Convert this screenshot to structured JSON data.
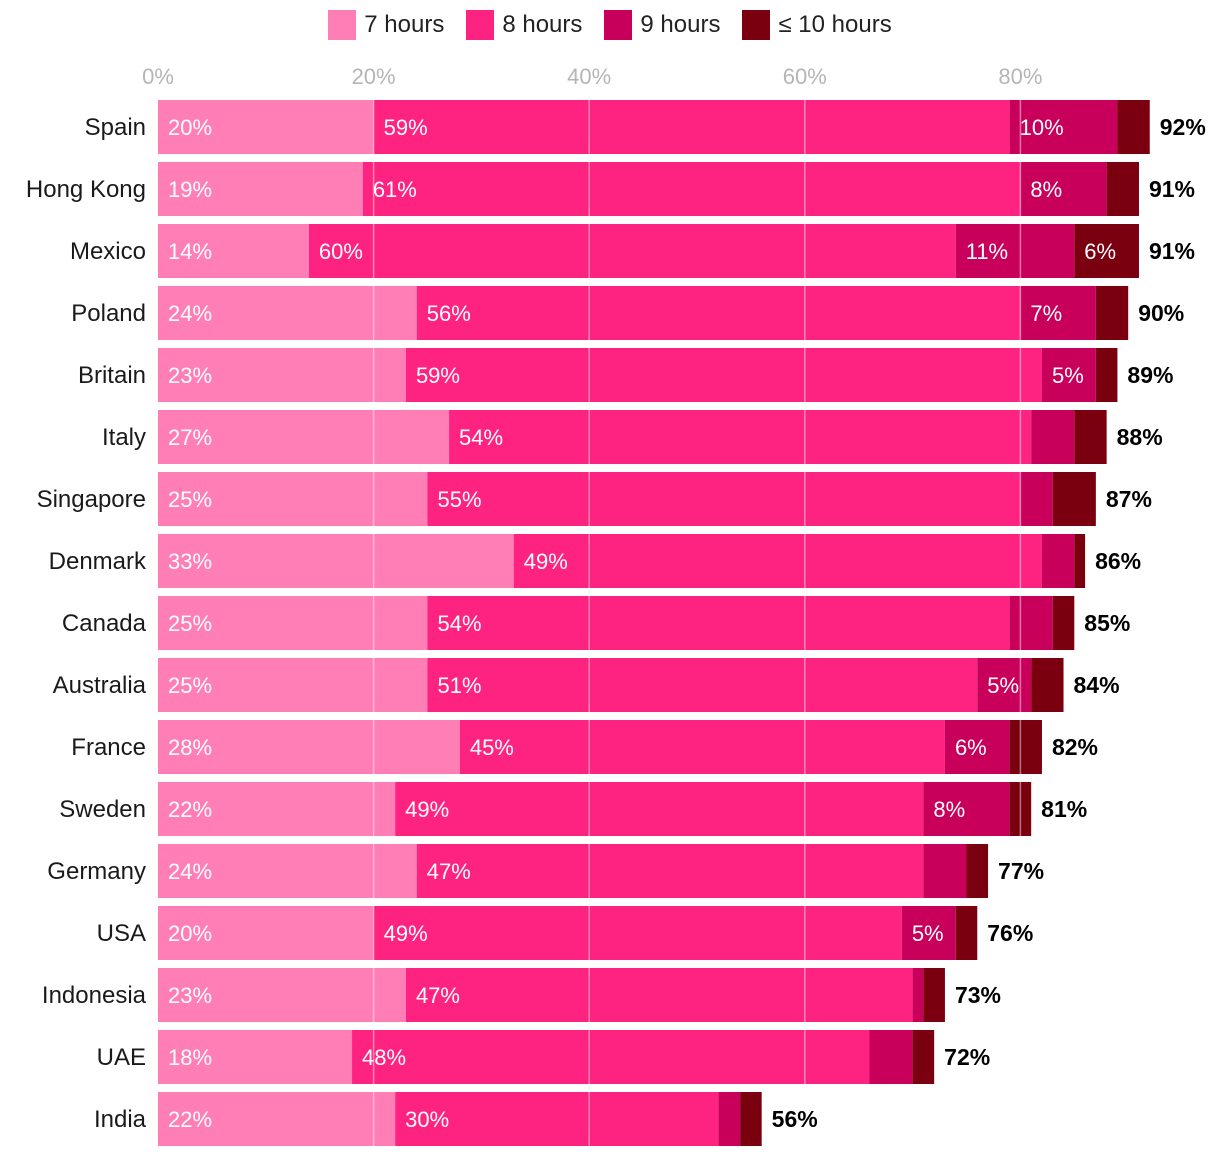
{
  "chart_data": {
    "type": "bar",
    "orientation": "horizontal",
    "stacked": true,
    "xlim": [
      0,
      100
    ],
    "x_ticks": [
      "0%",
      "20%",
      "40%",
      "60%",
      "80%"
    ],
    "x_tick_values": [
      0,
      20,
      40,
      60,
      80
    ],
    "grid": true,
    "legend_position": "top-center",
    "series": [
      {
        "name": "7 hours",
        "color": "#FF7EB6"
      },
      {
        "name": "8 hours",
        "color": "#FF2381"
      },
      {
        "name": "9 hours",
        "color": "#C9005B"
      },
      {
        "name": "≤ 10 hours",
        "color": "#7A0010"
      }
    ],
    "rows": [
      {
        "country": "Spain",
        "values": [
          20,
          59,
          10,
          3
        ],
        "labels": [
          "20%",
          "59%",
          "10%",
          ""
        ],
        "total": "92%"
      },
      {
        "country": "Hong Kong",
        "values": [
          19,
          61,
          8,
          3
        ],
        "labels": [
          "19%",
          "61%",
          "8%",
          ""
        ],
        "total": "91%"
      },
      {
        "country": "Mexico",
        "values": [
          14,
          60,
          11,
          6
        ],
        "labels": [
          "14%",
          "60%",
          "11%",
          "6%"
        ],
        "total": "91%"
      },
      {
        "country": "Poland",
        "values": [
          24,
          56,
          7,
          3
        ],
        "labels": [
          "24%",
          "56%",
          "7%",
          ""
        ],
        "total": "90%"
      },
      {
        "country": "Britain",
        "values": [
          23,
          59,
          5,
          2
        ],
        "labels": [
          "23%",
          "59%",
          "5%",
          ""
        ],
        "total": "89%"
      },
      {
        "country": "Italy",
        "values": [
          27,
          54,
          4,
          3
        ],
        "labels": [
          "27%",
          "54%",
          "",
          ""
        ],
        "total": "88%"
      },
      {
        "country": "Singapore",
        "values": [
          25,
          55,
          3,
          4
        ],
        "labels": [
          "25%",
          "55%",
          "",
          ""
        ],
        "total": "87%"
      },
      {
        "country": "Denmark",
        "values": [
          33,
          49,
          3,
          1
        ],
        "labels": [
          "33%",
          "49%",
          "",
          ""
        ],
        "total": "86%"
      },
      {
        "country": "Canada",
        "values": [
          25,
          54,
          4,
          2
        ],
        "labels": [
          "25%",
          "54%",
          "",
          ""
        ],
        "total": "85%"
      },
      {
        "country": "Australia",
        "values": [
          25,
          51,
          5,
          3
        ],
        "labels": [
          "25%",
          "51%",
          "5%",
          ""
        ],
        "total": "84%"
      },
      {
        "country": "France",
        "values": [
          28,
          45,
          6,
          3
        ],
        "labels": [
          "28%",
          "45%",
          "6%",
          ""
        ],
        "total": "82%"
      },
      {
        "country": "Sweden",
        "values": [
          22,
          49,
          8,
          2
        ],
        "labels": [
          "22%",
          "49%",
          "8%",
          ""
        ],
        "total": "81%"
      },
      {
        "country": "Germany",
        "values": [
          24,
          47,
          4,
          2
        ],
        "labels": [
          "24%",
          "47%",
          "",
          ""
        ],
        "total": "77%"
      },
      {
        "country": "USA",
        "values": [
          20,
          49,
          5,
          2
        ],
        "labels": [
          "20%",
          "49%",
          "5%",
          ""
        ],
        "total": "76%"
      },
      {
        "country": "Indonesia",
        "values": [
          23,
          47,
          1,
          2
        ],
        "labels": [
          "23%",
          "47%",
          "",
          ""
        ],
        "total": "73%"
      },
      {
        "country": "UAE",
        "values": [
          18,
          48,
          4,
          2
        ],
        "labels": [
          "18%",
          "48%",
          "",
          ""
        ],
        "total": "72%"
      },
      {
        "country": "India",
        "values": [
          22,
          30,
          2,
          2
        ],
        "labels": [
          "22%",
          "30%",
          "",
          ""
        ],
        "total": "56%"
      }
    ]
  }
}
